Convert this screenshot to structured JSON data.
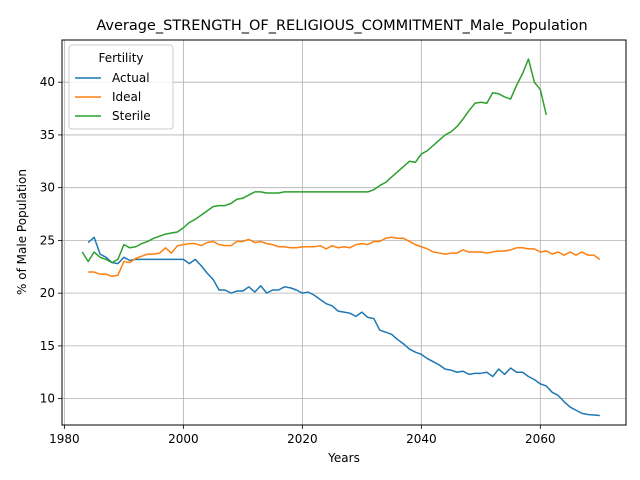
{
  "chart_data": {
    "type": "line",
    "title": "Average_STRENGTH_OF_RELIGIOUS_COMMITMENT_Male_Population",
    "xlabel": "Years",
    "ylabel": "% of Male Population",
    "xlim": [
      1979.6,
      2074.4
    ],
    "ylim": [
      7.5,
      44.0
    ],
    "xticks": [
      1980,
      2000,
      2020,
      2040,
      2060
    ],
    "yticks": [
      10,
      15,
      20,
      25,
      30,
      35,
      40
    ],
    "grid": true,
    "legend": {
      "title": "Fertility",
      "placement": "top-left"
    },
    "series": [
      {
        "name": "Actual",
        "color": "#1f77b4",
        "points": [
          [
            1984,
            24.8
          ],
          [
            1985,
            25.3
          ],
          [
            1986,
            23.7
          ],
          [
            1987,
            23.4
          ],
          [
            1988,
            22.9
          ],
          [
            1989,
            22.8
          ],
          [
            1990,
            23.4
          ],
          [
            1991,
            23.1
          ],
          [
            1992,
            23.2
          ],
          [
            1993,
            23.2
          ],
          [
            1994,
            23.2
          ],
          [
            1995,
            23.2
          ],
          [
            1996,
            23.2
          ],
          [
            1997,
            23.2
          ],
          [
            1998,
            23.2
          ],
          [
            1999,
            23.2
          ],
          [
            2000,
            23.2
          ],
          [
            2001,
            22.8
          ],
          [
            2002,
            23.2
          ],
          [
            2003,
            22.6
          ],
          [
            2004,
            21.9
          ],
          [
            2005,
            21.3
          ],
          [
            2006,
            20.3
          ],
          [
            2007,
            20.3
          ],
          [
            2008,
            20.0
          ],
          [
            2009,
            20.2
          ],
          [
            2010,
            20.2
          ],
          [
            2011,
            20.6
          ],
          [
            2012,
            20.1
          ],
          [
            2013,
            20.7
          ],
          [
            2014,
            20.0
          ],
          [
            2015,
            20.3
          ],
          [
            2016,
            20.3
          ],
          [
            2017,
            20.6
          ],
          [
            2018,
            20.5
          ],
          [
            2019,
            20.3
          ],
          [
            2020,
            20.0
          ],
          [
            2021,
            20.1
          ],
          [
            2022,
            19.8
          ],
          [
            2023,
            19.4
          ],
          [
            2024,
            19.0
          ],
          [
            2025,
            18.8
          ],
          [
            2026,
            18.3
          ],
          [
            2027,
            18.2
          ],
          [
            2028,
            18.1
          ],
          [
            2029,
            17.8
          ],
          [
            2030,
            18.2
          ],
          [
            2031,
            17.7
          ],
          [
            2032,
            17.6
          ],
          [
            2033,
            16.5
          ],
          [
            2034,
            16.3
          ],
          [
            2035,
            16.1
          ],
          [
            2036,
            15.6
          ],
          [
            2037,
            15.2
          ],
          [
            2038,
            14.7
          ],
          [
            2039,
            14.4
          ],
          [
            2040,
            14.2
          ],
          [
            2041,
            13.8
          ],
          [
            2042,
            13.5
          ],
          [
            2043,
            13.2
          ],
          [
            2044,
            12.8
          ],
          [
            2045,
            12.7
          ],
          [
            2046,
            12.5
          ],
          [
            2047,
            12.6
          ],
          [
            2048,
            12.3
          ],
          [
            2049,
            12.4
          ],
          [
            2050,
            12.4
          ],
          [
            2051,
            12.5
          ],
          [
            2052,
            12.1
          ],
          [
            2053,
            12.8
          ],
          [
            2054,
            12.3
          ],
          [
            2055,
            12.9
          ],
          [
            2056,
            12.5
          ],
          [
            2057,
            12.5
          ],
          [
            2058,
            12.1
          ],
          [
            2059,
            11.8
          ],
          [
            2060,
            11.4
          ],
          [
            2061,
            11.2
          ],
          [
            2062,
            10.6
          ],
          [
            2063,
            10.3
          ],
          [
            2064,
            9.7
          ],
          [
            2065,
            9.2
          ],
          [
            2066,
            8.9
          ],
          [
            2067,
            8.6
          ],
          [
            2068,
            8.5
          ],
          [
            2069,
            8.45
          ],
          [
            2070,
            8.4
          ]
        ]
      },
      {
        "name": "Ideal",
        "color": "#ff7f0e",
        "points": [
          [
            1984,
            22.0
          ],
          [
            1985,
            22.0
          ],
          [
            1986,
            21.8
          ],
          [
            1987,
            21.8
          ],
          [
            1988,
            21.6
          ],
          [
            1989,
            21.7
          ],
          [
            1990,
            23.0
          ],
          [
            1991,
            22.9
          ],
          [
            1992,
            23.3
          ],
          [
            1993,
            23.5
          ],
          [
            1994,
            23.7
          ],
          [
            1995,
            23.7
          ],
          [
            1996,
            23.8
          ],
          [
            1997,
            24.3
          ],
          [
            1998,
            23.8
          ],
          [
            1999,
            24.5
          ],
          [
            2000,
            24.6
          ],
          [
            2001,
            24.7
          ],
          [
            2002,
            24.7
          ],
          [
            2003,
            24.5
          ],
          [
            2004,
            24.8
          ],
          [
            2005,
            24.9
          ],
          [
            2006,
            24.6
          ],
          [
            2007,
            24.5
          ],
          [
            2008,
            24.5
          ],
          [
            2009,
            24.9
          ],
          [
            2010,
            24.9
          ],
          [
            2011,
            25.1
          ],
          [
            2012,
            24.8
          ],
          [
            2013,
            24.9
          ],
          [
            2014,
            24.7
          ],
          [
            2015,
            24.6
          ],
          [
            2016,
            24.4
          ],
          [
            2017,
            24.4
          ],
          [
            2018,
            24.3
          ],
          [
            2019,
            24.3
          ],
          [
            2020,
            24.4
          ],
          [
            2021,
            24.4
          ],
          [
            2022,
            24.4
          ],
          [
            2023,
            24.5
          ],
          [
            2024,
            24.2
          ],
          [
            2025,
            24.5
          ],
          [
            2026,
            24.3
          ],
          [
            2027,
            24.4
          ],
          [
            2028,
            24.3
          ],
          [
            2029,
            24.6
          ],
          [
            2030,
            24.7
          ],
          [
            2031,
            24.6
          ],
          [
            2032,
            24.9
          ],
          [
            2033,
            24.9
          ],
          [
            2034,
            25.2
          ],
          [
            2035,
            25.3
          ],
          [
            2036,
            25.2
          ],
          [
            2037,
            25.2
          ],
          [
            2038,
            24.9
          ],
          [
            2039,
            24.6
          ],
          [
            2040,
            24.4
          ],
          [
            2041,
            24.2
          ],
          [
            2042,
            23.9
          ],
          [
            2043,
            23.8
          ],
          [
            2044,
            23.7
          ],
          [
            2045,
            23.8
          ],
          [
            2046,
            23.8
          ],
          [
            2047,
            24.1
          ],
          [
            2048,
            23.9
          ],
          [
            2049,
            23.9
          ],
          [
            2050,
            23.9
          ],
          [
            2051,
            23.8
          ],
          [
            2052,
            23.9
          ],
          [
            2053,
            24.0
          ],
          [
            2054,
            24.0
          ],
          [
            2055,
            24.1
          ],
          [
            2056,
            24.3
          ],
          [
            2057,
            24.3
          ],
          [
            2058,
            24.2
          ],
          [
            2059,
            24.2
          ],
          [
            2060,
            23.9
          ],
          [
            2061,
            24.0
          ],
          [
            2062,
            23.7
          ],
          [
            2063,
            23.9
          ],
          [
            2064,
            23.6
          ],
          [
            2065,
            23.9
          ],
          [
            2066,
            23.6
          ],
          [
            2067,
            23.9
          ],
          [
            2068,
            23.6
          ],
          [
            2069,
            23.6
          ],
          [
            2070,
            23.2
          ]
        ]
      },
      {
        "name": "Sterile",
        "color": "#2ca02c",
        "points": [
          [
            1983,
            23.9
          ],
          [
            1984,
            23.0
          ],
          [
            1985,
            23.9
          ],
          [
            1986,
            23.4
          ],
          [
            1987,
            23.2
          ],
          [
            1988,
            22.9
          ],
          [
            1989,
            23.2
          ],
          [
            1990,
            24.6
          ],
          [
            1991,
            24.3
          ],
          [
            1992,
            24.4
          ],
          [
            1993,
            24.7
          ],
          [
            1994,
            24.9
          ],
          [
            1995,
            25.2
          ],
          [
            1996,
            25.4
          ],
          [
            1997,
            25.6
          ],
          [
            1998,
            25.7
          ],
          [
            1999,
            25.8
          ],
          [
            2000,
            26.2
          ],
          [
            2001,
            26.7
          ],
          [
            2002,
            27.0
          ],
          [
            2003,
            27.4
          ],
          [
            2004,
            27.8
          ],
          [
            2005,
            28.2
          ],
          [
            2006,
            28.3
          ],
          [
            2007,
            28.3
          ],
          [
            2008,
            28.5
          ],
          [
            2009,
            28.9
          ],
          [
            2010,
            29.0
          ],
          [
            2011,
            29.3
          ],
          [
            2012,
            29.6
          ],
          [
            2013,
            29.6
          ],
          [
            2014,
            29.5
          ],
          [
            2015,
            29.5
          ],
          [
            2016,
            29.5
          ],
          [
            2017,
            29.6
          ],
          [
            2018,
            29.6
          ],
          [
            2019,
            29.6
          ],
          [
            2020,
            29.6
          ],
          [
            2021,
            29.6
          ],
          [
            2022,
            29.6
          ],
          [
            2023,
            29.6
          ],
          [
            2024,
            29.6
          ],
          [
            2025,
            29.6
          ],
          [
            2026,
            29.6
          ],
          [
            2027,
            29.6
          ],
          [
            2028,
            29.6
          ],
          [
            2029,
            29.6
          ],
          [
            2030,
            29.6
          ],
          [
            2031,
            29.6
          ],
          [
            2032,
            29.8
          ],
          [
            2033,
            30.2
          ],
          [
            2034,
            30.5
          ],
          [
            2035,
            31.0
          ],
          [
            2036,
            31.5
          ],
          [
            2037,
            32.0
          ],
          [
            2038,
            32.5
          ],
          [
            2039,
            32.4
          ],
          [
            2040,
            33.2
          ],
          [
            2041,
            33.5
          ],
          [
            2042,
            34.0
          ],
          [
            2043,
            34.5
          ],
          [
            2044,
            35.0
          ],
          [
            2045,
            35.3
          ],
          [
            2046,
            35.8
          ],
          [
            2047,
            36.5
          ],
          [
            2048,
            37.3
          ],
          [
            2049,
            38.0
          ],
          [
            2050,
            38.1
          ],
          [
            2051,
            38.0
          ],
          [
            2052,
            39.0
          ],
          [
            2053,
            38.9
          ],
          [
            2054,
            38.6
          ],
          [
            2055,
            38.4
          ],
          [
            2056,
            39.7
          ],
          [
            2057,
            40.8
          ],
          [
            2058,
            42.2
          ],
          [
            2059,
            40.0
          ],
          [
            2060,
            39.3
          ],
          [
            2061,
            36.9
          ]
        ]
      }
    ]
  }
}
